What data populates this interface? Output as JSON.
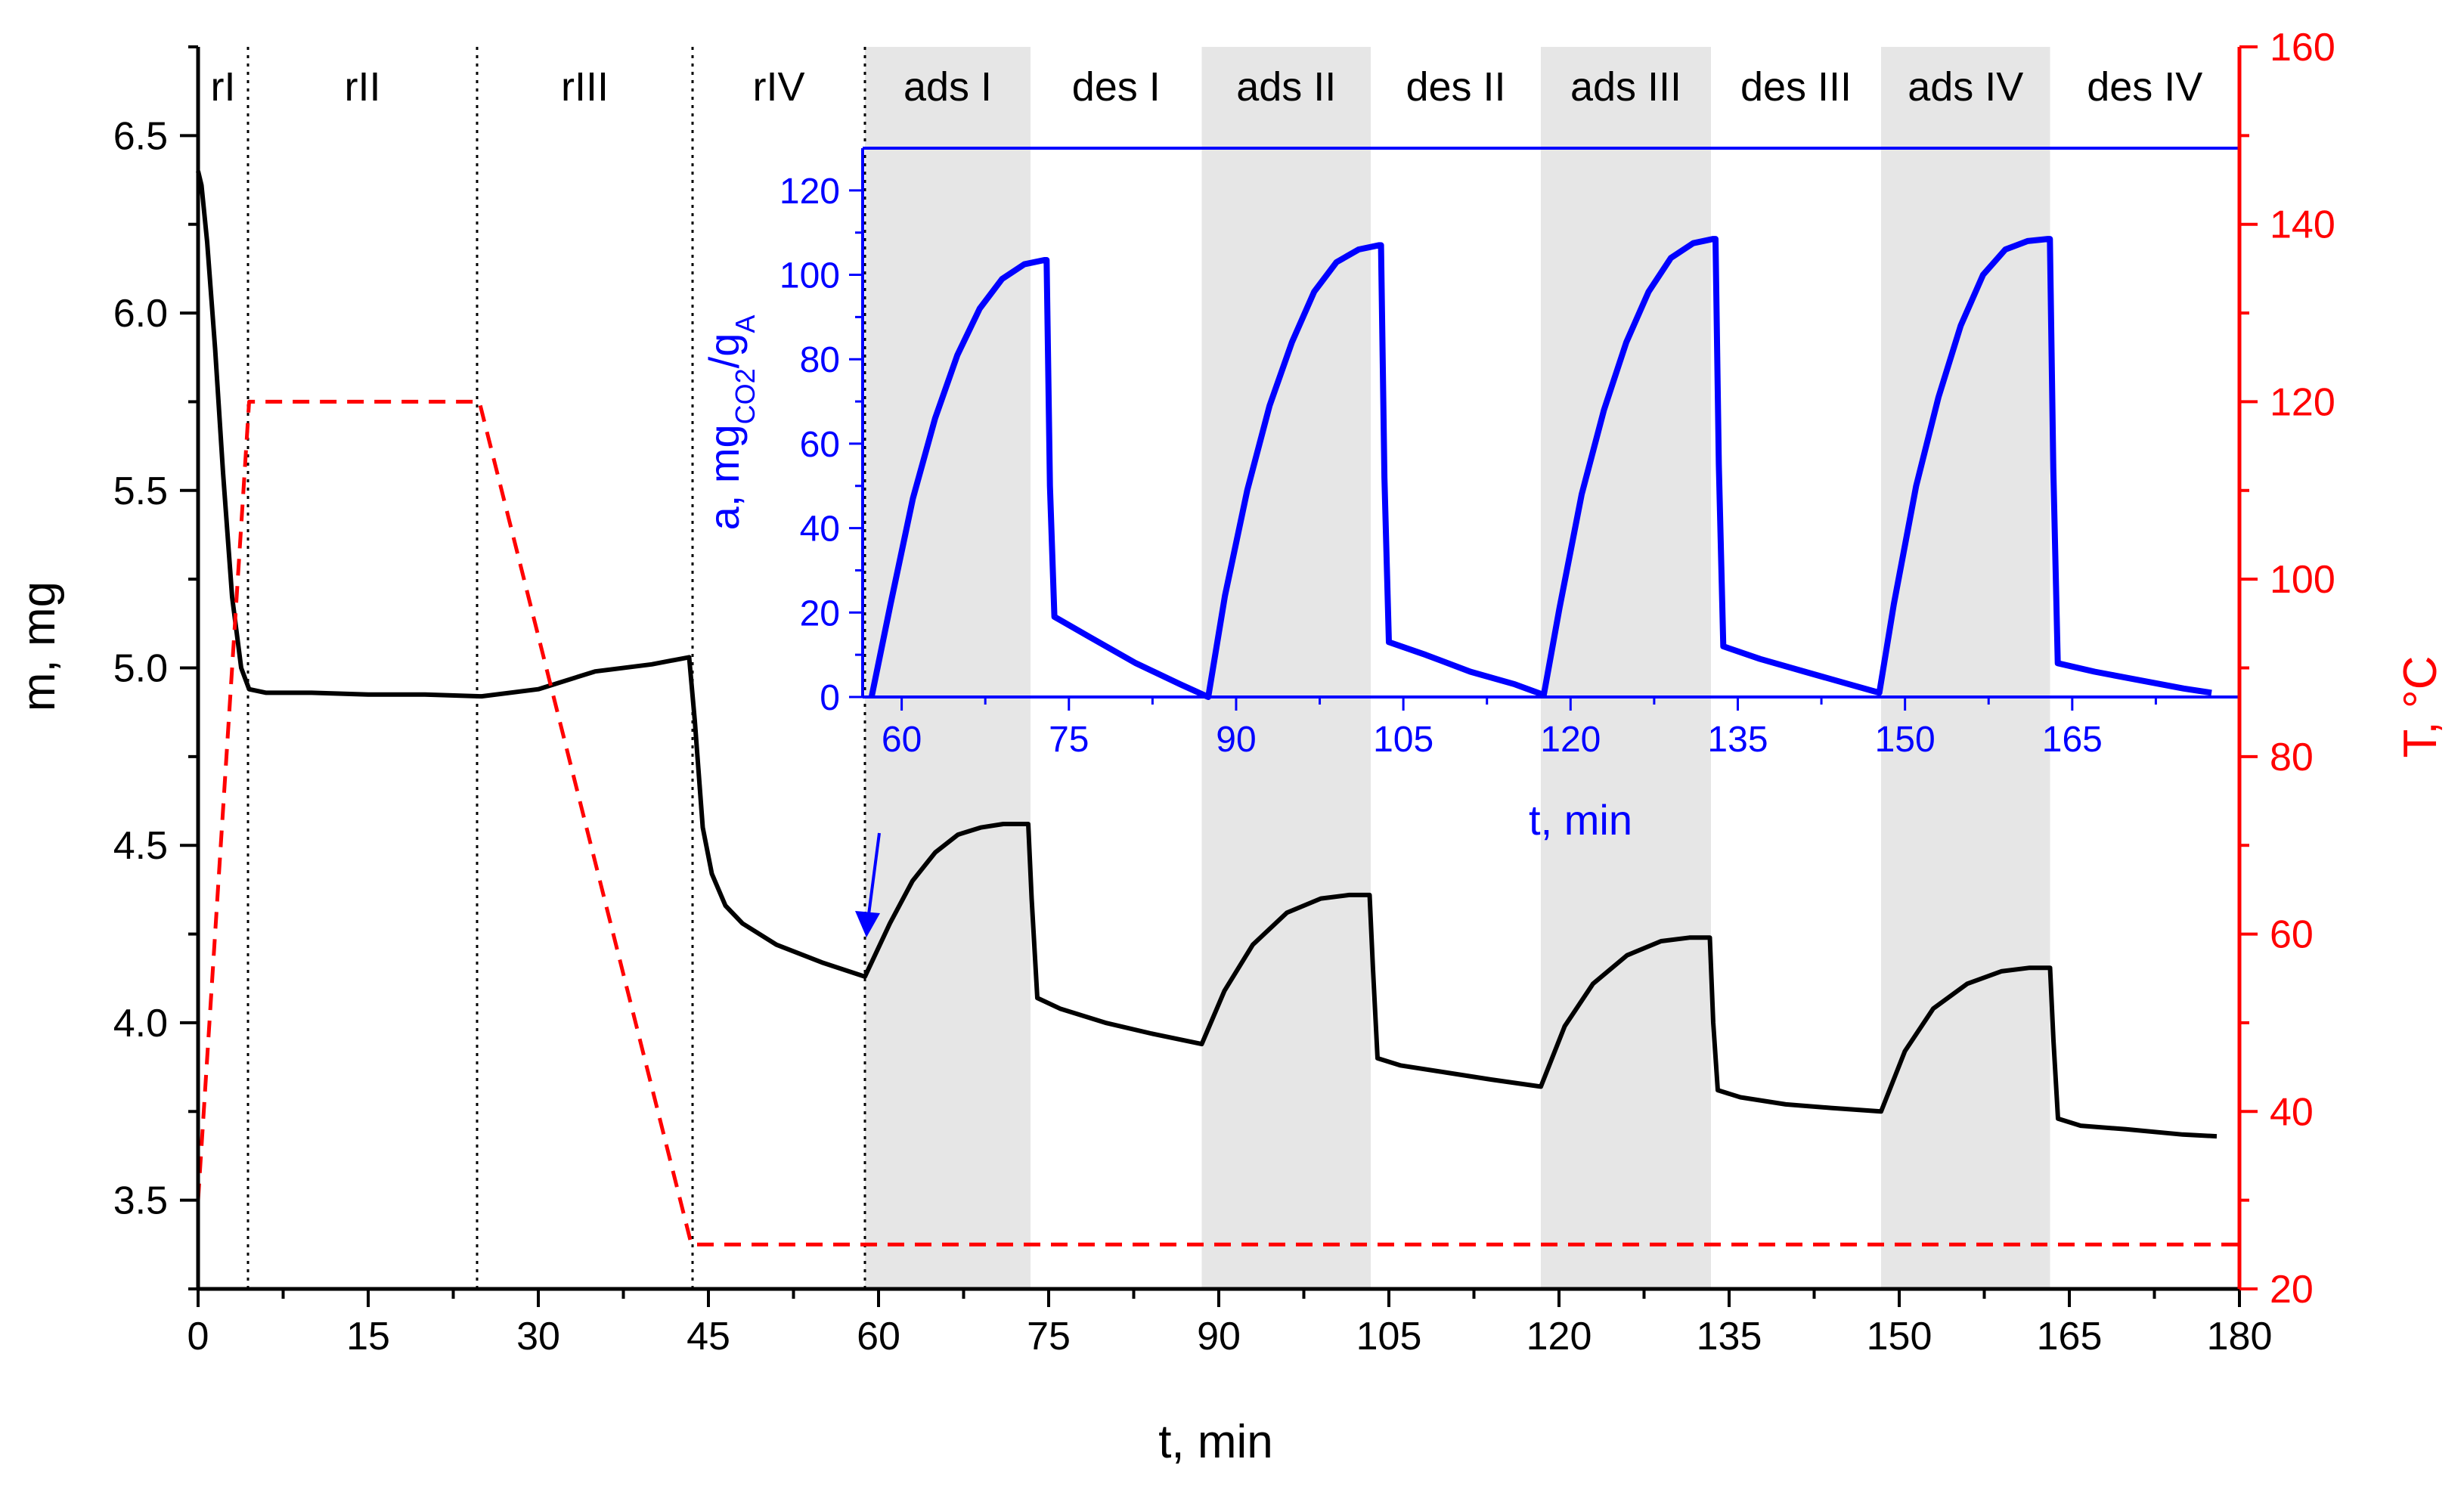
{
  "chart_data": [
    {
      "type": "line",
      "title": "",
      "xlabel": "t, min",
      "ylabel": "m, mg",
      "y2label": "T, °C",
      "xlim": [
        0,
        180
      ],
      "ylim": [
        3.25,
        6.75
      ],
      "y2lim": [
        20,
        160
      ],
      "xticks": [
        "0",
        "15",
        "30",
        "45",
        "60",
        "75",
        "90",
        "105",
        "120",
        "135",
        "150",
        "165",
        "180"
      ],
      "yticks": [
        "3.5",
        "4.0",
        "4.5",
        "5.0",
        "5.5",
        "6.0",
        "6.5"
      ],
      "y2ticks": [
        "20",
        "40",
        "60",
        "80",
        "100",
        "120",
        "140",
        "160"
      ],
      "grid": false,
      "stages": [
        {
          "label": "rI",
          "start": 0,
          "end": 4.4
        },
        {
          "label": "rII",
          "start": 4.4,
          "end": 24.6
        },
        {
          "label": "rIII",
          "start": 24.6,
          "end": 43.6
        },
        {
          "label": "rIV",
          "start": 43.6,
          "end": 58.8
        },
        {
          "label": "ads I",
          "start": 58.8,
          "end": 73.4
        },
        {
          "label": "des I",
          "start": 73.4,
          "end": 88.5
        },
        {
          "label": "ads II",
          "start": 88.5,
          "end": 103.4
        },
        {
          "label": "des II",
          "start": 103.4,
          "end": 118.4
        },
        {
          "label": "ads III",
          "start": 118.4,
          "end": 133.4
        },
        {
          "label": "des III",
          "start": 133.4,
          "end": 148.4
        },
        {
          "label": "ads IV",
          "start": 148.4,
          "end": 163.3
        },
        {
          "label": "des IV",
          "start": 163.3,
          "end": 180
        }
      ],
      "shaded_stages": [
        "ads I",
        "ads II",
        "ads III",
        "ads IV"
      ],
      "series": [
        {
          "axis": "left",
          "color": "#000000",
          "style": "solid",
          "x": [
            0,
            0.3,
            0.8,
            1.5,
            2.2,
            3.0,
            3.8,
            4.5,
            6,
            10,
            15,
            20,
            25,
            30,
            35,
            40,
            43.3,
            43.8,
            44.5,
            45.3,
            46.5,
            48,
            51,
            55,
            58.8,
            61,
            63,
            65,
            67,
            69,
            71,
            73.2,
            73.5,
            74,
            76,
            80,
            84,
            88.5,
            90.5,
            93,
            96,
            99,
            101.5,
            103.3,
            103.6,
            104,
            106,
            110,
            114,
            118.4,
            120.5,
            123,
            126,
            129,
            131.5,
            133.3,
            133.6,
            134,
            136,
            140,
            144,
            148.4,
            150.5,
            153,
            156,
            159,
            161.5,
            163.3,
            163.6,
            164,
            166,
            170,
            175,
            178
          ],
          "y": [
            6.4,
            6.36,
            6.2,
            5.9,
            5.55,
            5.2,
            5.0,
            4.94,
            4.93,
            4.93,
            4.925,
            4.925,
            4.92,
            4.94,
            4.99,
            5.01,
            5.03,
            4.85,
            4.55,
            4.42,
            4.33,
            4.28,
            4.22,
            4.17,
            4.13,
            4.28,
            4.4,
            4.48,
            4.53,
            4.55,
            4.56,
            4.56,
            4.35,
            4.07,
            4.04,
            4.0,
            3.97,
            3.94,
            4.09,
            4.22,
            4.31,
            4.35,
            4.36,
            4.36,
            4.15,
            3.9,
            3.88,
            3.86,
            3.84,
            3.82,
            3.99,
            4.11,
            4.19,
            4.23,
            4.24,
            4.24,
            4.0,
            3.81,
            3.79,
            3.77,
            3.76,
            3.75,
            3.92,
            4.04,
            4.11,
            4.145,
            4.155,
            4.155,
            3.95,
            3.73,
            3.71,
            3.7,
            3.685,
            3.68
          ]
        },
        {
          "axis": "right",
          "color": "#ff0000",
          "style": "dashed",
          "x": [
            0,
            4.5,
            24.8,
            43.5,
            180
          ],
          "y": [
            30,
            120,
            120,
            25,
            25
          ]
        }
      ]
    },
    {
      "type": "line",
      "title": "",
      "xlabel": "t, min",
      "ylabel_parts": {
        "main": "a, mg",
        "sub1": "CO2",
        "mid": "/g",
        "sub2": "A"
      },
      "xlim": [
        56.5,
        180
      ],
      "ylim": [
        0,
        130
      ],
      "xticks": [
        "60",
        "75",
        "90",
        "105",
        "120",
        "135",
        "150",
        "165"
      ],
      "yticks": [
        "0",
        "20",
        "40",
        "60",
        "80",
        "100",
        "120"
      ],
      "grid": false,
      "shaded": [
        [
          58.8,
          73.4
        ],
        [
          88.5,
          103.4
        ],
        [
          118.4,
          133.4
        ],
        [
          148.4,
          163.3
        ]
      ],
      "series": [
        {
          "color": "#0000ff",
          "style": "solid",
          "x": [
            57.3,
            59,
            61,
            63,
            65,
            67,
            69,
            71,
            72.8,
            73.0,
            73.3,
            73.7,
            77,
            81,
            85,
            87.5,
            89,
            91,
            93,
            95,
            97,
            99,
            101,
            102.8,
            103.0,
            103.3,
            103.7,
            107,
            111,
            115,
            117.6,
            119,
            121,
            123,
            125,
            127,
            129,
            131,
            132.8,
            133.0,
            133.3,
            133.7,
            137,
            141,
            145,
            147.7,
            149,
            151,
            153,
            155,
            157,
            159,
            161,
            162.8,
            163.0,
            163.3,
            163.7,
            167,
            171,
            175,
            177.5
          ],
          "y": [
            0,
            22,
            47,
            66,
            81,
            92,
            99,
            102.5,
            103.5,
            103.5,
            50,
            19,
            14,
            8,
            3,
            0,
            24,
            49,
            69,
            84,
            96,
            103,
            106,
            107,
            107,
            52,
            13,
            10,
            6,
            3,
            0.5,
            21,
            48,
            68,
            84,
            96,
            104,
            107.5,
            108.5,
            108.5,
            55,
            12,
            9,
            6,
            3,
            1,
            22,
            50,
            71,
            88,
            100,
            106,
            108,
            108.5,
            108.5,
            54,
            8,
            6,
            4,
            2,
            1
          ]
        }
      ]
    }
  ]
}
